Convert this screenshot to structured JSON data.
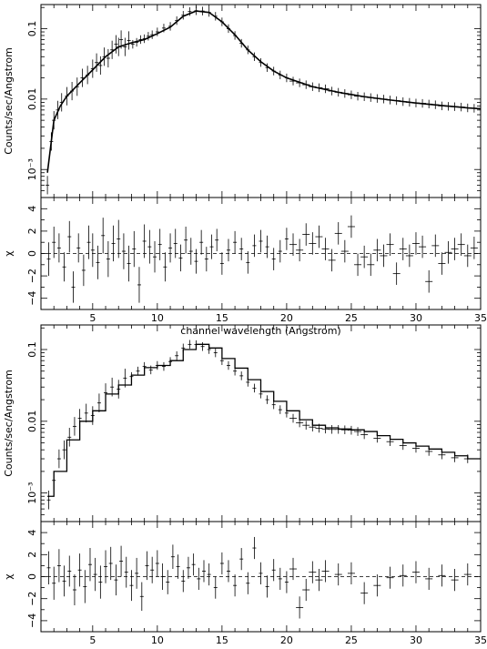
{
  "chart_data": [
    {
      "type": "scatter",
      "role": "spectrum",
      "title": "",
      "xlabel": "",
      "ylabel": "Counts/sec/Angstrom",
      "log_y": true,
      "xlim": [
        1,
        35
      ],
      "ylim": [
        0.0004,
        0.22
      ],
      "xticks": [
        "5",
        "10",
        "15",
        "20",
        "25",
        "30",
        "35"
      ],
      "yticks": [
        {
          "value": 0.1,
          "label": "0.1"
        },
        {
          "value": 0.01,
          "label": "0.01"
        },
        {
          "value": 0.001,
          "label": "10⁻³"
        }
      ],
      "series": [
        {
          "kind": "data_points_with_errors",
          "x": [
            1.5,
            1.8,
            2.0,
            2.3,
            2.6,
            3.0,
            3.4,
            3.8,
            4.2,
            4.6,
            5.0,
            5.3,
            5.6,
            5.9,
            6.2,
            6.5,
            6.8,
            7.0,
            7.2,
            7.5,
            7.8,
            8.1,
            8.4,
            8.7,
            9.0,
            9.3,
            9.6,
            10.0,
            10.5,
            11.0,
            11.5,
            12.0,
            12.5,
            13.0,
            13.5,
            14.0,
            14.5,
            15.0,
            15.5,
            16.0,
            16.5,
            17.0,
            17.5,
            18.0,
            18.5,
            19.0,
            19.5,
            20.0,
            20.5,
            21.0,
            21.5,
            22.0,
            22.5,
            23.0,
            23.5,
            24.0,
            24.5,
            25.0,
            25.5,
            26.0,
            26.5,
            27.0,
            27.5,
            28.0,
            28.5,
            29.0,
            29.5,
            30.0,
            30.5,
            31.0,
            31.5,
            32.0,
            32.5,
            33.0,
            33.5,
            34.0,
            34.5
          ],
          "y": [
            0.0006,
            0.0025,
            0.005,
            0.007,
            0.009,
            0.011,
            0.013,
            0.015,
            0.02,
            0.022,
            0.027,
            0.033,
            0.03,
            0.04,
            0.038,
            0.05,
            0.06,
            0.055,
            0.07,
            0.055,
            0.068,
            0.06,
            0.064,
            0.07,
            0.072,
            0.078,
            0.082,
            0.09,
            0.102,
            0.108,
            0.13,
            0.155,
            0.175,
            0.18,
            0.178,
            0.17,
            0.15,
            0.125,
            0.1,
            0.08,
            0.062,
            0.05,
            0.04,
            0.033,
            0.028,
            0.025,
            0.022,
            0.02,
            0.018,
            0.017,
            0.016,
            0.015,
            0.0145,
            0.014,
            0.013,
            0.0125,
            0.012,
            0.0115,
            0.011,
            0.0108,
            0.0105,
            0.0102,
            0.01,
            0.0097,
            0.0095,
            0.0092,
            0.009,
            0.0088,
            0.0087,
            0.0085,
            0.0083,
            0.008,
            0.0079,
            0.0078,
            0.0077,
            0.0075,
            0.0074
          ]
        },
        {
          "kind": "model_line",
          "x": [
            1.5,
            2.0,
            2.5,
            3.0,
            4.0,
            5.0,
            6.0,
            7.0,
            8.0,
            9.0,
            10.0,
            11.0,
            12.0,
            13.0,
            14.0,
            15.0,
            16.0,
            17.0,
            18.0,
            19.0,
            20.0,
            22.0,
            24.0,
            26.0,
            28.0,
            30.0,
            32.0,
            34.0,
            35.0
          ],
          "y": [
            0.0009,
            0.005,
            0.008,
            0.011,
            0.017,
            0.026,
            0.04,
            0.055,
            0.063,
            0.07,
            0.085,
            0.105,
            0.15,
            0.178,
            0.17,
            0.125,
            0.082,
            0.05,
            0.034,
            0.025,
            0.02,
            0.015,
            0.0125,
            0.0108,
            0.0097,
            0.0088,
            0.0081,
            0.0075,
            0.0073
          ]
        }
      ]
    },
    {
      "type": "scatter",
      "role": "residuals",
      "title": "",
      "xlabel": "channel wavelength (Angstrom)",
      "ylabel": "χ",
      "xlim": [
        1,
        35
      ],
      "ylim": [
        -5,
        5
      ],
      "xticks": [
        "5",
        "10",
        "15",
        "20",
        "25",
        "30",
        "35"
      ],
      "yticks": [
        "4",
        "2",
        "0",
        "−2",
        "−4"
      ],
      "zero_line": "dashed",
      "series": [
        {
          "kind": "residuals_with_errors",
          "x": [
            1.6,
            2.0,
            2.4,
            2.8,
            3.2,
            3.5,
            3.9,
            4.3,
            4.7,
            5.0,
            5.4,
            5.8,
            6.2,
            6.6,
            7.0,
            7.4,
            7.8,
            8.2,
            8.6,
            9.0,
            9.4,
            9.8,
            10.2,
            10.6,
            11.0,
            11.4,
            11.8,
            12.2,
            12.6,
            13.0,
            13.4,
            13.8,
            14.2,
            14.6,
            15.0,
            15.5,
            16.0,
            16.5,
            17.0,
            17.5,
            18.0,
            18.5,
            19.0,
            19.5,
            20.0,
            20.5,
            21.0,
            21.5,
            22.0,
            22.5,
            23.0,
            23.5,
            24.0,
            24.5,
            25.0,
            25.5,
            26.0,
            26.5,
            27.0,
            27.5,
            28.0,
            28.5,
            29.0,
            29.5,
            30.0,
            30.5,
            31.0,
            31.5,
            32.0,
            32.5,
            33.0,
            33.5,
            34.0,
            34.5
          ],
          "y": [
            -0.5,
            1.0,
            0.5,
            -1.2,
            1.5,
            -3.0,
            0.5,
            -1.5,
            1.0,
            0.3,
            -0.8,
            1.6,
            -0.5,
            0.9,
            1.3,
            0.2,
            -0.9,
            0.4,
            -2.8,
            1.1,
            0.6,
            -0.3,
            0.8,
            -1.2,
            0.5,
            0.9,
            -0.4,
            1.2,
            0.2,
            -0.7,
            1.0,
            -0.5,
            0.6,
            1.2,
            -0.9,
            0.3,
            1.0,
            0.4,
            -0.8,
            0.7,
            1.1,
            0.6,
            -0.5,
            0.2,
            1.3,
            0.8,
            0.3,
            1.7,
            0.9,
            1.5,
            0.4,
            -0.6,
            1.8,
            0.2,
            2.4,
            -1.0,
            -0.3,
            -1.0,
            0.3,
            -0.2,
            0.8,
            -1.8,
            0.4,
            -0.2,
            0.9,
            0.6,
            -2.5,
            0.7,
            -0.9,
            0.1,
            0.4,
            0.8,
            -0.2,
            0.5
          ],
          "err": [
            1.5,
            1.4,
            1.3,
            1.3,
            1.4,
            1.4,
            1.3,
            1.4,
            1.5,
            1.5,
            1.5,
            1.6,
            1.6,
            1.6,
            1.7,
            1.6,
            1.6,
            1.6,
            1.6,
            1.5,
            1.5,
            1.4,
            1.4,
            1.3,
            1.3,
            1.3,
            1.2,
            1.2,
            1.2,
            1.1,
            1.1,
            1.1,
            1.1,
            1.0,
            1.0,
            1.0,
            1.0,
            1.0,
            1.0,
            1.0,
            1.0,
            1.0,
            1.0,
            1.0,
            1.0,
            1.0,
            1.0,
            1.0,
            1.0,
            1.0,
            1.0,
            1.0,
            1.0,
            1.0,
            1.0,
            1.0,
            1.0,
            1.0,
            1.0,
            1.0,
            1.0,
            1.0,
            1.0,
            1.0,
            1.0,
            1.0,
            1.0,
            1.0,
            1.0,
            1.0,
            1.0,
            1.0,
            1.0,
            1.0
          ]
        }
      ]
    },
    {
      "type": "scatter",
      "role": "spectrum",
      "title": "",
      "xlabel": "",
      "ylabel": "Counts/sec/Angstrom",
      "log_y": true,
      "xlim": [
        1,
        35
      ],
      "ylim": [
        0.0004,
        0.22
      ],
      "xticks": [
        "5",
        "10",
        "15",
        "20",
        "25",
        "30",
        "35"
      ],
      "yticks": [
        {
          "value": 0.1,
          "label": "0.1"
        },
        {
          "value": 0.01,
          "label": "0.01"
        },
        {
          "value": 0.001,
          "label": "10⁻³"
        }
      ],
      "series": [
        {
          "kind": "data_points_with_errors",
          "x": [
            1.6,
            2.0,
            2.4,
            2.8,
            3.2,
            3.6,
            4.0,
            4.5,
            5.0,
            5.5,
            6.0,
            6.5,
            7.0,
            7.5,
            8.0,
            8.5,
            9.0,
            9.5,
            10.0,
            10.5,
            11.0,
            11.5,
            12.0,
            12.5,
            13.0,
            13.5,
            14.0,
            14.5,
            15.0,
            15.5,
            16.0,
            16.5,
            17.0,
            17.5,
            18.0,
            18.5,
            19.0,
            19.5,
            20.0,
            20.5,
            21.0,
            21.5,
            22.0,
            22.5,
            23.0,
            23.5,
            24.0,
            24.5,
            25.0,
            25.5,
            26.0,
            27.0,
            28.0,
            29.0,
            30.0,
            31.0,
            32.0,
            33.0,
            34.0
          ],
          "y": [
            0.0008,
            0.0015,
            0.003,
            0.004,
            0.006,
            0.0085,
            0.011,
            0.013,
            0.012,
            0.018,
            0.025,
            0.03,
            0.028,
            0.04,
            0.042,
            0.05,
            0.058,
            0.052,
            0.06,
            0.058,
            0.068,
            0.082,
            0.105,
            0.118,
            0.117,
            0.11,
            0.1,
            0.09,
            0.07,
            0.06,
            0.05,
            0.043,
            0.035,
            0.029,
            0.024,
            0.02,
            0.017,
            0.0145,
            0.013,
            0.011,
            0.0095,
            0.0088,
            0.0083,
            0.008,
            0.0078,
            0.0077,
            0.0077,
            0.0076,
            0.0075,
            0.0072,
            0.0065,
            0.0058,
            0.0052,
            0.0046,
            0.0042,
            0.0038,
            0.0034,
            0.0031,
            0.003
          ]
        },
        {
          "kind": "model_step",
          "x": [
            1.5,
            2.0,
            3.0,
            4.0,
            5.0,
            6.0,
            7.0,
            8.0,
            9.0,
            10.0,
            11.0,
            12.0,
            13.0,
            14.0,
            15.0,
            16.0,
            17.0,
            18.0,
            19.0,
            20.0,
            21.0,
            22.0,
            23.0,
            24.0,
            25.0,
            26.0,
            27.0,
            28.0,
            29.0,
            30.0,
            31.0,
            32.0,
            33.0,
            34.0,
            35.0
          ],
          "y": [
            0.0009,
            0.002,
            0.0055,
            0.01,
            0.014,
            0.024,
            0.032,
            0.044,
            0.056,
            0.06,
            0.07,
            0.1,
            0.118,
            0.105,
            0.075,
            0.055,
            0.038,
            0.026,
            0.019,
            0.014,
            0.0105,
            0.0088,
            0.0081,
            0.0078,
            0.0076,
            0.0072,
            0.0063,
            0.0056,
            0.005,
            0.0045,
            0.0041,
            0.0037,
            0.0033,
            0.003,
            0.003
          ]
        }
      ]
    },
    {
      "type": "scatter",
      "role": "residuals",
      "title": "",
      "xlabel": "channel wavelength (Angstrom)",
      "ylabel": "χ",
      "xlim": [
        1,
        35
      ],
      "ylim": [
        -5,
        5
      ],
      "xticks": [
        "5",
        "10",
        "15",
        "20",
        "25",
        "30",
        "35"
      ],
      "yticks": [
        "4",
        "2",
        "0",
        "−2",
        "−4"
      ],
      "zero_line": "dashed",
      "series": [
        {
          "kind": "residuals_with_errors",
          "x": [
            1.6,
            2.0,
            2.4,
            2.8,
            3.2,
            3.6,
            4.0,
            4.4,
            4.8,
            5.2,
            5.6,
            6.0,
            6.4,
            6.8,
            7.2,
            7.6,
            8.0,
            8.4,
            8.8,
            9.2,
            9.6,
            10.0,
            10.4,
            10.8,
            11.2,
            11.6,
            12.0,
            12.4,
            12.8,
            13.2,
            13.6,
            14.0,
            14.5,
            15.0,
            15.5,
            16.0,
            16.5,
            17.0,
            17.5,
            18.0,
            18.5,
            19.0,
            19.5,
            20.0,
            20.5,
            21.0,
            21.5,
            22.0,
            22.5,
            23.0,
            24.0,
            25.0,
            26.0,
            27.0,
            28.0,
            29.0,
            30.0,
            31.0,
            32.0,
            33.0,
            34.0
          ],
          "y": [
            0.8,
            -0.6,
            1.0,
            -0.4,
            0.5,
            -1.2,
            0.6,
            -0.9,
            1.1,
            0.2,
            -0.5,
            0.9,
            1.2,
            -0.3,
            1.4,
            0.4,
            -0.8,
            0.3,
            -1.8,
            1.0,
            0.6,
            1.2,
            0.0,
            -0.5,
            1.8,
            0.9,
            -0.4,
            0.8,
            1.1,
            -0.2,
            0.5,
            0.2,
            -1.0,
            1.2,
            0.5,
            -0.8,
            1.6,
            -0.6,
            2.6,
            0.3,
            -0.9,
            0.6,
            -0.2,
            -0.5,
            0.7,
            -2.8,
            -1.2,
            0.4,
            -0.3,
            0.5,
            0.2,
            0.3,
            -1.5,
            -0.8,
            -0.1,
            0.1,
            0.4,
            -0.2,
            0.1,
            -0.3,
            0.2
          ],
          "err": [
            1.5,
            1.5,
            1.5,
            1.4,
            1.4,
            1.4,
            1.5,
            1.5,
            1.5,
            1.5,
            1.5,
            1.5,
            1.5,
            1.4,
            1.4,
            1.4,
            1.4,
            1.4,
            1.3,
            1.3,
            1.2,
            1.2,
            1.2,
            1.1,
            1.1,
            1.1,
            1.0,
            1.0,
            1.0,
            1.0,
            1.0,
            1.0,
            1.0,
            1.0,
            1.0,
            1.0,
            1.0,
            1.0,
            1.0,
            1.0,
            1.0,
            1.0,
            1.0,
            1.0,
            1.0,
            1.0,
            1.0,
            1.0,
            1.0,
            1.0,
            1.0,
            1.0,
            1.0,
            1.0,
            1.0,
            1.0,
            1.0,
            1.0,
            1.0,
            1.0,
            1.0
          ]
        }
      ]
    }
  ]
}
